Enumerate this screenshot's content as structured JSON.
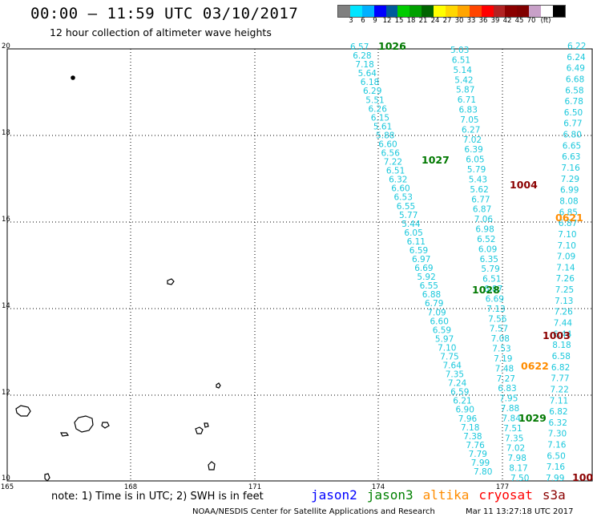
{
  "header": {
    "title": "00:00 – 11:59 UTC 03/10/2017",
    "subtitle": "12 hour collection of altimeter wave heights"
  },
  "legend": {
    "colors": [
      "#808080",
      "#00e5ff",
      "#00b0ff",
      "#0000ff",
      "#005a9c",
      "#00cc00",
      "#00a000",
      "#006400",
      "#ffff00",
      "#ffd700",
      "#ffa500",
      "#ff4500",
      "#ff0000",
      "#b22222",
      "#8b0000",
      "#800000",
      "#c8a0c8",
      "#ffffff",
      "#000000"
    ],
    "labels": [
      "3",
      "6",
      "9",
      "12",
      "15",
      "18",
      "21",
      "24",
      "27",
      "30",
      "33",
      "36",
      "39",
      "42",
      "45",
      "70",
      "(ft)"
    ]
  },
  "axes": {
    "x_ticks": [
      "165",
      "168",
      "171",
      "174",
      "177"
    ],
    "y_ticks": [
      "20",
      "18",
      "16",
      "14",
      "12",
      "10"
    ]
  },
  "map": {
    "wave_heights": {
      "track_a": [
        "6.57",
        "6.28",
        "7.18",
        "5.64",
        "6.18",
        "6.29",
        "5.51",
        "6.26",
        "6.15",
        "5.61",
        "5.88",
        "6.60",
        "6.56",
        "7.22",
        "6.51",
        "6.32",
        "6.60",
        "6.53",
        "6.55",
        "5.77",
        "5.44",
        "6.05",
        "6.11",
        "6.59",
        "6.97",
        "6.69",
        "5.92",
        "6.55",
        "6.88",
        "6.79",
        "7.09",
        "6.60",
        "6.59",
        "5.97",
        "7.10",
        "7.75",
        "7.64",
        "7.35",
        "7.24",
        "6.59",
        "6.21",
        "6.90",
        "7.96",
        "7.18",
        "7.38",
        "7.76",
        "7.79",
        "7.99",
        "7.80"
      ],
      "track_b": [
        "5.03",
        "6.51",
        "5.14",
        "5.42",
        "5.87",
        "6.71",
        "6.83",
        "7.05",
        "6.27",
        "7.02",
        "6.39",
        "6.05",
        "5.79",
        "5.43",
        "5.62",
        "6.77",
        "6.87",
        "7.06",
        "6.98",
        "6.52",
        "6.09",
        "6.35",
        "5.79",
        "6.51",
        "6.87",
        "6.69",
        "7.13",
        "7.56",
        "7.57",
        "7.08",
        "7.53",
        "7.19",
        "7.48",
        "7.27",
        "6.83",
        "7.95",
        "7.88",
        "7.84",
        "7.51",
        "7.35",
        "7.02",
        "7.98",
        "8.17",
        "7.50"
      ],
      "track_c": [
        "6.22",
        "6.24",
        "6.49",
        "6.68",
        "6.58",
        "6.78",
        "6.50",
        "6.77",
        "6.80",
        "6.65",
        "6.63",
        "7.16",
        "7.29",
        "6.99",
        "8.08",
        "6.85",
        "6.87",
        "7.10",
        "7.10",
        "7.09",
        "7.14",
        "7.26",
        "7.25",
        "7.13",
        "7.26",
        "7.44",
        "6.44",
        "8.18",
        "6.58",
        "6.82",
        "7.77",
        "7.22",
        "7.11",
        "6.82",
        "6.32",
        "7.30",
        "7.16",
        "6.50",
        "7.16",
        "7.99"
      ]
    },
    "orbits": [
      {
        "label": "1026",
        "color": "#007800"
      },
      {
        "label": "1027",
        "color": "#007800"
      },
      {
        "label": "1004",
        "color": "#8b0000"
      },
      {
        "label": "0621",
        "color": "#ff8c00"
      },
      {
        "label": "1028",
        "color": "#007800"
      },
      {
        "label": "1003",
        "color": "#8b0000"
      },
      {
        "label": "0622",
        "color": "#ff8c00"
      },
      {
        "label": "1029",
        "color": "#007800"
      },
      {
        "label": "100",
        "color": "#8b0000"
      }
    ]
  },
  "footer": {
    "note": "note: 1) Time is in UTC; 2) SWH is in feet",
    "satellites": [
      {
        "name": "jason2",
        "color": "#0000ff"
      },
      {
        "name": "jason3",
        "color": "#008000"
      },
      {
        "name": "altika",
        "color": "#ff8c00"
      },
      {
        "name": "cryosat",
        "color": "#ff0000"
      },
      {
        "name": "s3a",
        "color": "#8b0000"
      }
    ],
    "credit": "NOAA/NESDIS Center for Satellite Applications and Research",
    "timestamp": "Mar 11 13:27:18 UTC 2017"
  }
}
